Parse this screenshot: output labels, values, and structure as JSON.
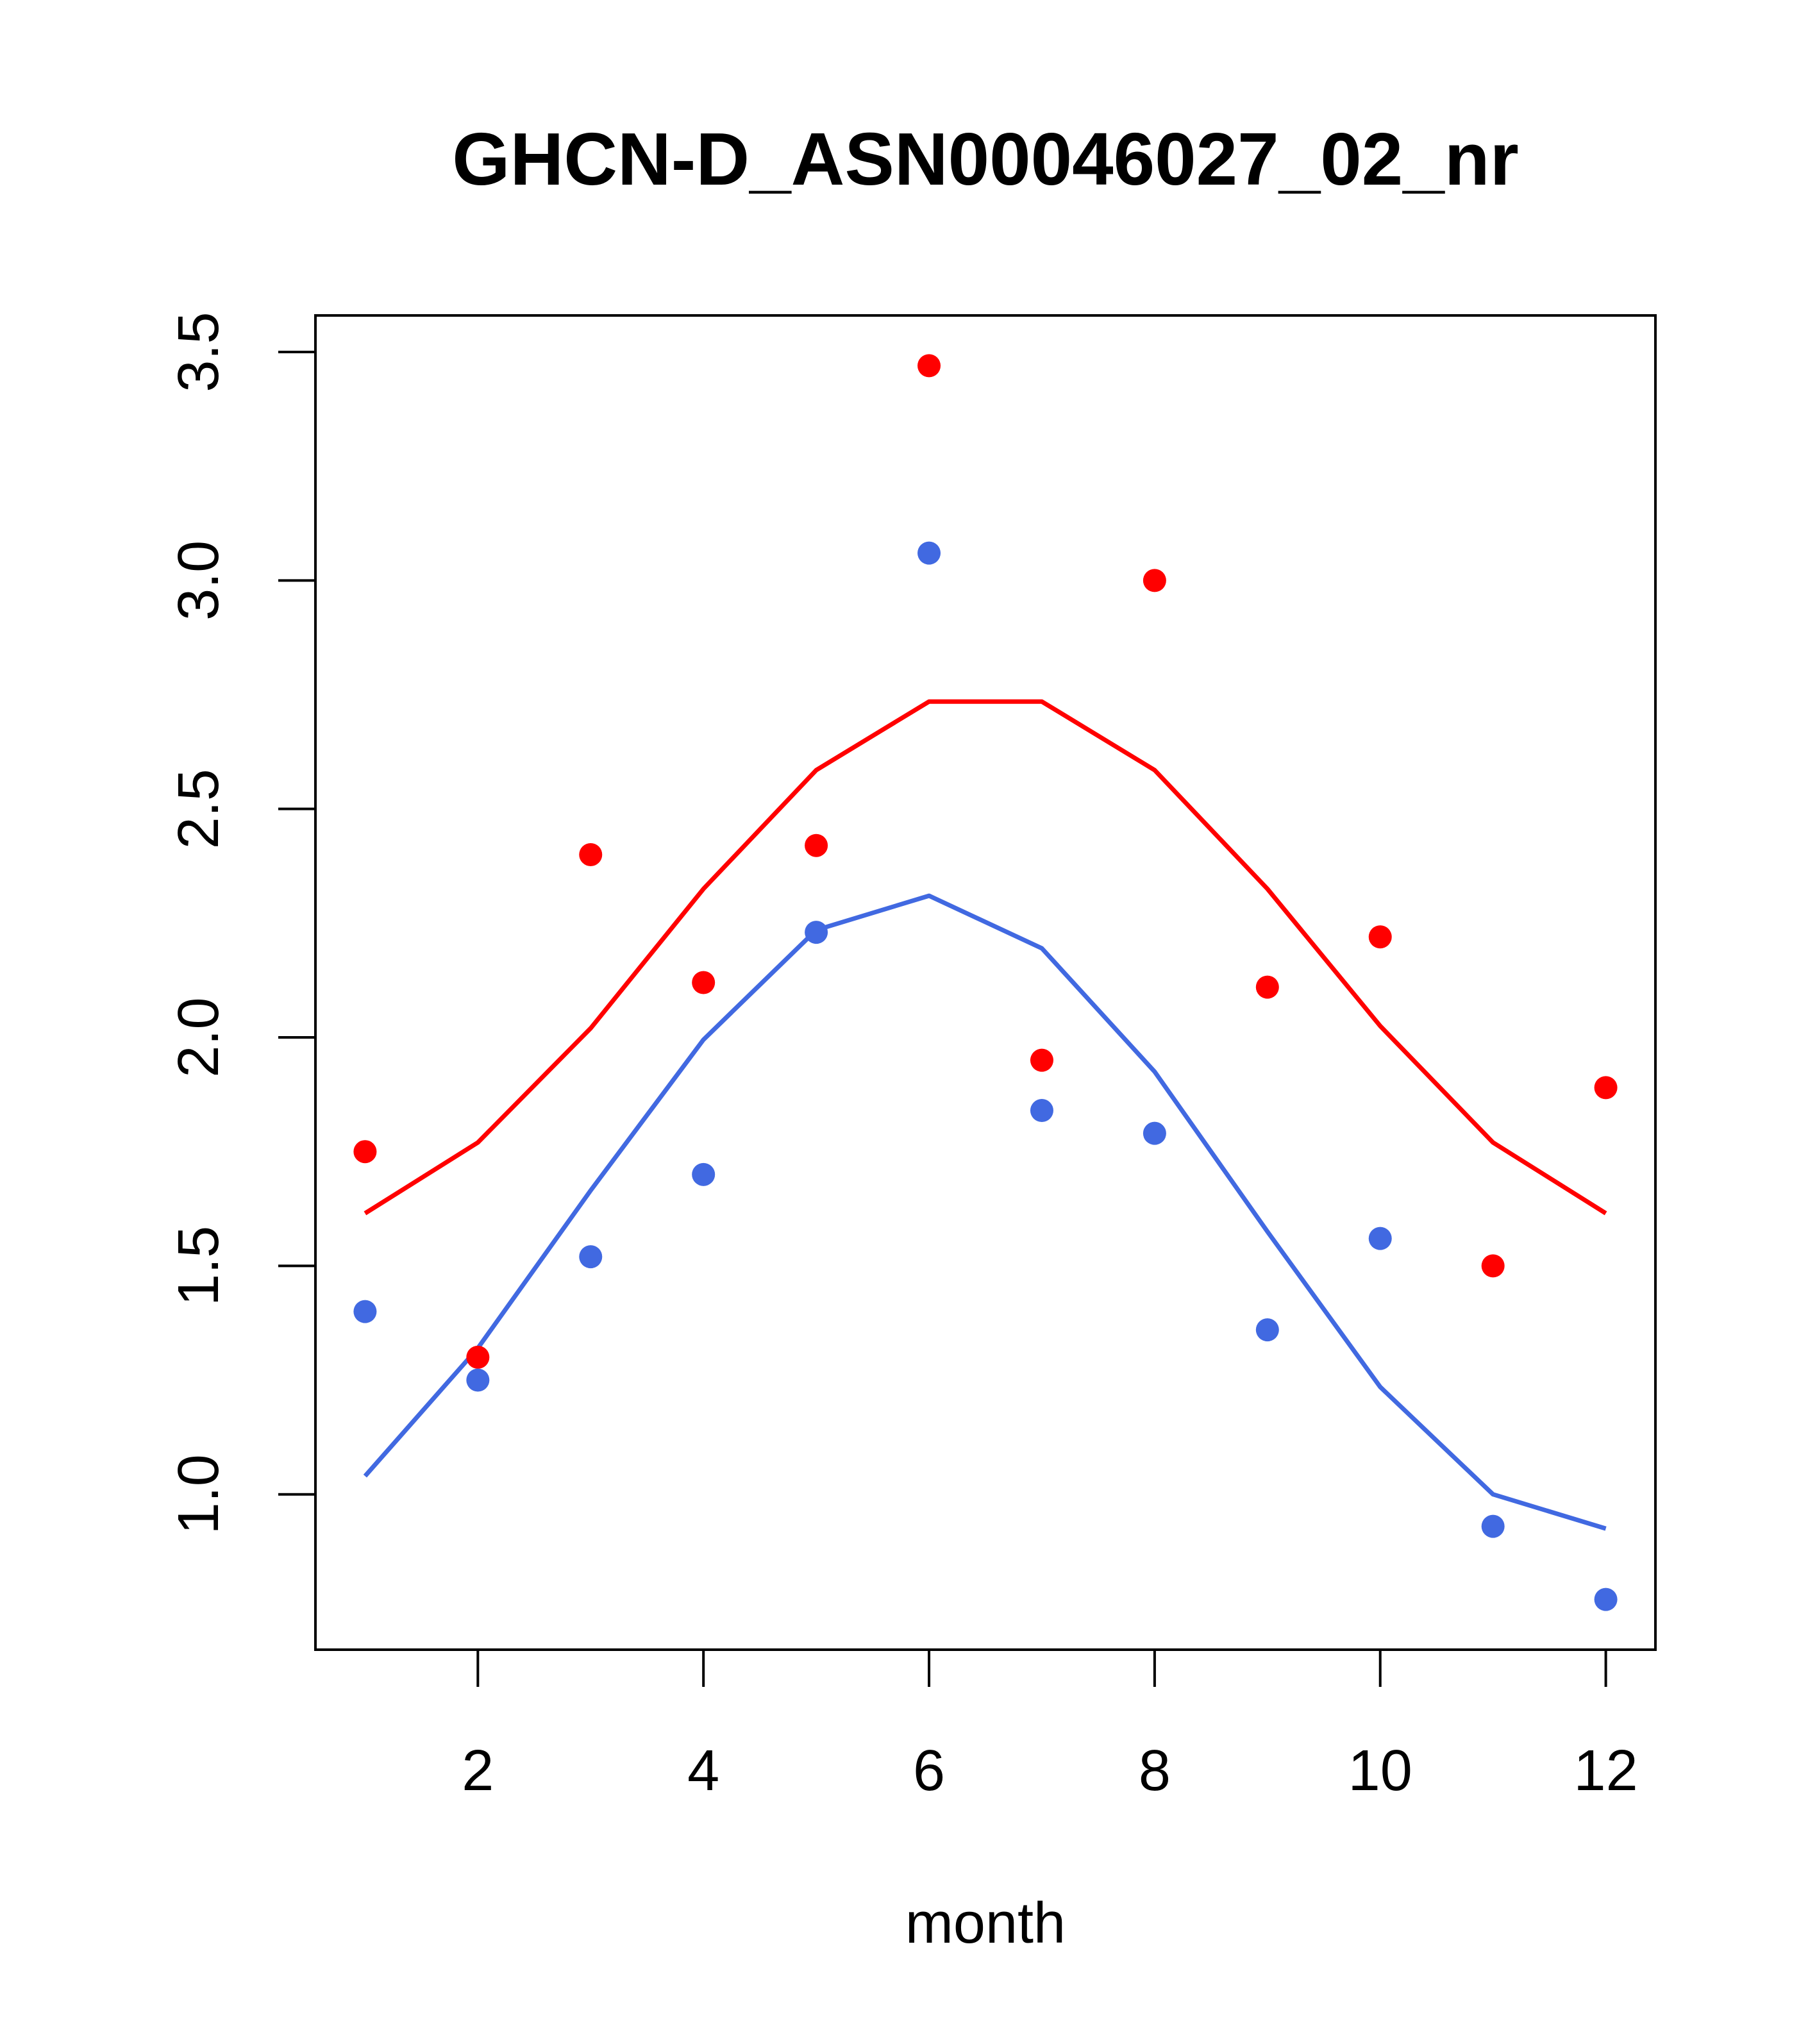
{
  "chart_data": {
    "type": "scatter",
    "title": "GHCN-D_ASN00046027_02_nr",
    "xlabel": "month",
    "ylabel": "",
    "xlim": [
      0.56,
      12.44
    ],
    "ylim": [
      0.66,
      3.58
    ],
    "x_ticks": [
      2,
      4,
      6,
      8,
      10,
      12
    ],
    "y_ticks": [
      1.0,
      1.5,
      2.0,
      2.5,
      3.0,
      3.5
    ],
    "x_tick_labels": [
      "2",
      "4",
      "6",
      "8",
      "10",
      "12"
    ],
    "y_tick_labels": [
      "1.0",
      "1.5",
      "2.0",
      "2.5",
      "3.0",
      "3.5"
    ],
    "grid": false,
    "legend": "none",
    "x": [
      1,
      2,
      3,
      4,
      5,
      6,
      7,
      8,
      9,
      10,
      11,
      12
    ],
    "series": [
      {
        "color": "#ff0000",
        "kind": "points",
        "values": [
          1.75,
          1.3,
          2.4,
          2.12,
          2.42,
          3.47,
          1.95,
          3.0,
          2.11,
          2.22,
          1.5,
          1.89
        ]
      },
      {
        "color": "#4169e1",
        "kind": "points",
        "values": [
          1.4,
          1.25,
          1.52,
          1.7,
          2.23,
          3.06,
          1.84,
          1.79,
          1.36,
          1.56,
          0.93,
          0.77
        ]
      },
      {
        "color": "#ff0000",
        "kind": "line",
        "values": [
          1.615,
          1.77,
          2.02,
          2.325,
          2.585,
          2.735,
          2.735,
          2.585,
          2.325,
          2.025,
          1.77,
          1.615
        ]
      },
      {
        "color": "#4169e1",
        "kind": "line",
        "values": [
          1.04,
          1.32,
          1.665,
          1.995,
          2.235,
          2.31,
          2.195,
          1.925,
          1.575,
          1.235,
          1.0,
          0.925
        ]
      }
    ]
  }
}
